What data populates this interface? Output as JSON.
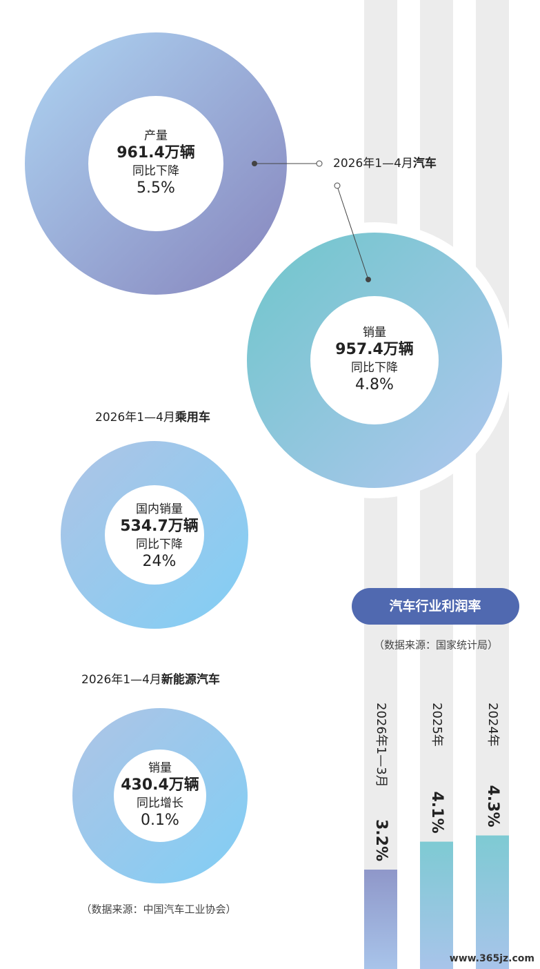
{
  "car_label": {
    "period": "2026年1—4月",
    "subject": "汽车"
  },
  "production": {
    "label": "产量",
    "amount": "961.4万辆",
    "change_label": "同比下降",
    "change": "5.5%"
  },
  "sales": {
    "label": "销量",
    "amount": "957.4万辆",
    "change_label": "同比下降",
    "change": "4.8%"
  },
  "passenger_label": {
    "period": "2026年1—4月",
    "subject": "乘用车"
  },
  "passenger": {
    "label": "国内销量",
    "amount": "534.7万辆",
    "change_label": "同比下降",
    "change": "24%"
  },
  "nev_label": {
    "period": "2026年1—4月",
    "subject": "新能源汽车"
  },
  "nev": {
    "label": "销量",
    "amount": "430.4万辆",
    "change_label": "同比增长",
    "change": "0.1%"
  },
  "source_left": "（数据来源：中国汽车工业协会）",
  "chart_data": {
    "type": "bar",
    "title": "汽车行业利润率",
    "subtitle": "（数据来源：国家统计局）",
    "categories": [
      "2026年1—3月",
      "2025年",
      "2024年"
    ],
    "values": [
      3.2,
      4.1,
      4.3
    ],
    "value_labels": [
      "3.2%",
      "4.1%",
      "4.3%"
    ],
    "colors": [
      "#8f97c9",
      "#7ecad3",
      "#7ecad3"
    ]
  },
  "watermark": "www.365jz.com"
}
